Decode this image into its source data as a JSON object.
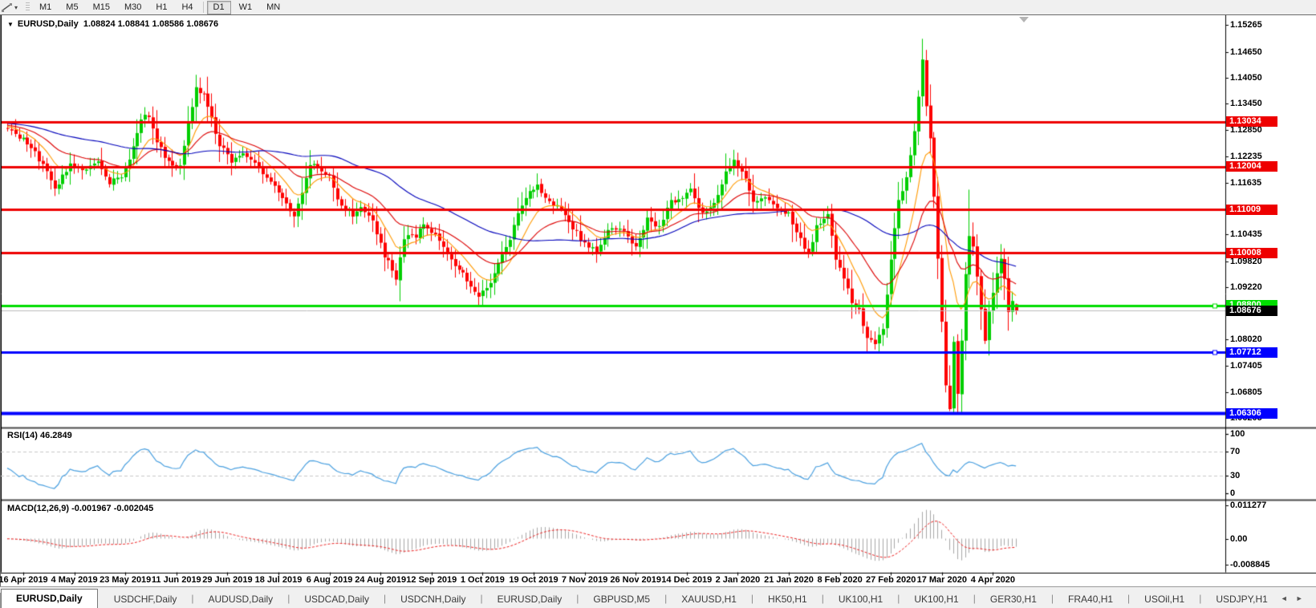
{
  "toolbar": {
    "tool_icon": "trendline-tool-icon",
    "dropdown_glyph": "▾",
    "timeframes": [
      {
        "label": "M1",
        "active": false
      },
      {
        "label": "M5",
        "active": false
      },
      {
        "label": "M15",
        "active": false
      },
      {
        "label": "M30",
        "active": false
      },
      {
        "label": "H1",
        "active": false
      },
      {
        "label": "H4",
        "active": false
      },
      {
        "label": "D1",
        "active": true
      },
      {
        "label": "W1",
        "active": false
      },
      {
        "label": "MN",
        "active": false
      }
    ]
  },
  "title": {
    "collapse_glyph": "▼",
    "symbol": "EURUSD,Daily",
    "values": "1.08824 1.08841 1.08586 1.08676"
  },
  "chart_data": {
    "type": "candlestick",
    "symbol": "EURUSD",
    "timeframe": "Daily",
    "bars": 258,
    "last_candle": {
      "open": 1.08824,
      "high": 1.08841,
      "low": 1.08586,
      "close": 1.08676
    },
    "x_axis": {
      "labels": [
        "16 Apr 2019",
        "4 May 2019",
        "23 May 2019",
        "11 Jun 2019",
        "29 Jun 2019",
        "18 Jul 2019",
        "6 Aug 2019",
        "24 Aug 2019",
        "12 Sep 2019",
        "1 Oct 2019",
        "19 Oct 2019",
        "7 Nov 2019",
        "26 Nov 2019",
        "14 Dec 2019",
        "2 Jan 2020",
        "21 Jan 2020",
        "8 Feb 2020",
        "27 Feb 2020",
        "17 Mar 2020",
        "4 Apr 2020"
      ]
    },
    "y_axis": {
      "range": [
        1.06,
        1.1542
      ],
      "visible_ticks": [
        "1.15265",
        "1.14650",
        "1.14050",
        "1.13450",
        "1.12850",
        "1.12235",
        "1.11635",
        "1.10435",
        "1.09820",
        "1.09220",
        "1.08020",
        "1.07405",
        "1.06805",
        "1.06205"
      ]
    },
    "hlines": [
      {
        "price": 1.13034,
        "label": "1.13034",
        "color": "#ee0000",
        "width": 3,
        "handle": false
      },
      {
        "price": 1.12004,
        "label": "1.12004",
        "color": "#ee0000",
        "width": 3,
        "handle": false
      },
      {
        "price": 1.11009,
        "label": "1.11009",
        "color": "#ee0000",
        "width": 3,
        "handle": false
      },
      {
        "price": 1.10008,
        "label": "1.10008",
        "color": "#ee0000",
        "width": 3,
        "handle": false
      },
      {
        "price": 1.088,
        "label": "1.08800",
        "color": "#00dd00",
        "width": 3,
        "handle": true
      },
      {
        "price": 1.07712,
        "label": "1.07712",
        "color": "#0000ff",
        "width": 3,
        "handle": true
      },
      {
        "price": 1.06306,
        "label": "1.06306",
        "color": "#0000ff",
        "width": 4,
        "handle": false
      }
    ],
    "current_price": {
      "value": 1.08676,
      "label": "1.08676",
      "line_color": "#bcbcbc",
      "label_bg": "#000000"
    },
    "price_anchors": [
      [
        -60,
        1.129
      ],
      [
        -45,
        1.133
      ],
      [
        -30,
        1.127
      ],
      [
        -15,
        1.131
      ],
      [
        0,
        1.1285
      ],
      [
        5,
        1.1255
      ],
      [
        9,
        1.1205
      ],
      [
        12,
        1.115
      ],
      [
        16,
        1.1205
      ],
      [
        20,
        1.1195
      ],
      [
        23,
        1.121
      ],
      [
        26,
        1.1165
      ],
      [
        29,
        1.1175
      ],
      [
        31,
        1.1215
      ],
      [
        34,
        1.131
      ],
      [
        36,
        1.132
      ],
      [
        38,
        1.1255
      ],
      [
        41,
        1.121
      ],
      [
        44,
        1.12
      ],
      [
        46,
        1.1305
      ],
      [
        48,
        1.138
      ],
      [
        50,
        1.137
      ],
      [
        52,
        1.131
      ],
      [
        54,
        1.125
      ],
      [
        57,
        1.1215
      ],
      [
        60,
        1.123
      ],
      [
        62,
        1.1215
      ],
      [
        65,
        1.1185
      ],
      [
        68,
        1.115
      ],
      [
        70,
        1.1125
      ],
      [
        73,
        1.108
      ],
      [
        75,
        1.1145
      ],
      [
        77,
        1.1205
      ],
      [
        80,
        1.1195
      ],
      [
        82,
        1.1175
      ],
      [
        85,
        1.1105
      ],
      [
        88,
        1.109
      ],
      [
        90,
        1.111
      ],
      [
        93,
        1.1075
      ],
      [
        96,
        1.0995
      ],
      [
        99,
        1.0945
      ],
      [
        101,
        1.1035
      ],
      [
        104,
        1.104
      ],
      [
        106,
        1.1065
      ],
      [
        109,
        1.104
      ],
      [
        112,
        1.0995
      ],
      [
        115,
        1.0965
      ],
      [
        117,
        1.0935
      ],
      [
        120,
        1.0895
      ],
      [
        123,
        1.0935
      ],
      [
        125,
        1.098
      ],
      [
        128,
        1.1035
      ],
      [
        130,
        1.1095
      ],
      [
        133,
        1.114
      ],
      [
        135,
        1.1155
      ],
      [
        138,
        1.112
      ],
      [
        141,
        1.1105
      ],
      [
        144,
        1.106
      ],
      [
        147,
        1.102
      ],
      [
        150,
        1.1005
      ],
      [
        153,
        1.1055
      ],
      [
        156,
        1.106
      ],
      [
        158,
        1.1035
      ],
      [
        160,
        1.1015
      ],
      [
        163,
        1.108
      ],
      [
        166,
        1.106
      ],
      [
        169,
        1.112
      ],
      [
        172,
        1.113
      ],
      [
        174,
        1.1145
      ],
      [
        177,
        1.109
      ],
      [
        180,
        1.1115
      ],
      [
        183,
        1.119
      ],
      [
        185,
        1.121
      ],
      [
        187,
        1.119
      ],
      [
        190,
        1.112
      ],
      [
        193,
        1.1135
      ],
      [
        196,
        1.111
      ],
      [
        199,
        1.109
      ],
      [
        202,
        1.103
      ],
      [
        204,
        1.1
      ],
      [
        206,
        1.106
      ],
      [
        209,
        1.109
      ],
      [
        211,
        1.099
      ],
      [
        213,
        1.0945
      ],
      [
        215,
        1.089
      ],
      [
        217,
        1.087
      ],
      [
        219,
        1.08
      ],
      [
        221,
        1.079
      ],
      [
        223,
        1.083
      ],
      [
        225,
        1.099
      ],
      [
        227,
        1.112
      ],
      [
        229,
        1.117
      ],
      [
        231,
        1.128
      ],
      [
        233,
        1.145
      ],
      [
        234,
        1.1335
      ],
      [
        235,
        1.127
      ],
      [
        236,
        1.113
      ],
      [
        237,
        1.099
      ],
      [
        238,
        1.084
      ],
      [
        239,
        1.07
      ],
      [
        240,
        1.0645
      ],
      [
        241,
        1.079
      ],
      [
        242,
        1.068
      ],
      [
        243,
        1.08
      ],
      [
        244,
        1.095
      ],
      [
        245,
        1.104
      ],
      [
        246,
        1.102
      ],
      [
        247,
        1.095
      ],
      [
        248,
        1.087
      ],
      [
        249,
        1.08
      ],
      [
        250,
        1.086
      ],
      [
        251,
        1.091
      ],
      [
        252,
        1.095
      ],
      [
        253,
        1.0985
      ],
      [
        254,
        1.094
      ],
      [
        255,
        1.087
      ],
      [
        256,
        1.089
      ],
      [
        257,
        1.08676
      ]
    ],
    "overrides": {
      "48": {
        "high": 1.1412
      },
      "99": {
        "low": 1.0926
      },
      "120": {
        "low": 1.0879
      },
      "185": {
        "high": 1.1239
      },
      "221": {
        "low": 1.0778
      },
      "233": {
        "high": 1.1495
      },
      "240": {
        "low": 1.0636
      },
      "245": {
        "high": 1.1147
      },
      "249": {
        "low": 1.0791
      },
      "257": {
        "open": 1.08824,
        "high": 1.08841,
        "low": 1.08586,
        "close": 1.08676
      }
    },
    "moving_averages": [
      {
        "period": 10,
        "method": "ema",
        "color": "#ff9900"
      },
      {
        "period": 24,
        "method": "ema",
        "color": "#dd0000"
      },
      {
        "period": 52,
        "method": "sma",
        "color": "#0000bb"
      }
    ],
    "indicators": {
      "rsi": {
        "label": "RSI(14)",
        "value": "46.2849",
        "period": 14,
        "levels": [
          70,
          30
        ],
        "axis_labels": [
          "100",
          "70",
          "30",
          "0"
        ],
        "color": "#4aa0e0",
        "level_color": "#c8c8c8"
      },
      "macd": {
        "label": "MACD(12,26,9)",
        "values": "-0.001967 -0.002045",
        "fast": 12,
        "slow": 26,
        "signal": 9,
        "axis_labels": [
          "0.011277",
          "0.00",
          "-0.008845"
        ],
        "axis_values": [
          0.011277,
          0.0,
          -0.008845
        ],
        "hist_color": "#a8a8a8",
        "signal_color": "#ee2222"
      }
    },
    "shift_marker": "chart-shift-triangle"
  },
  "colors": {
    "bull": "#00ce00",
    "bear": "#fe0000",
    "background": "#ffffff",
    "foreground": "#000000"
  },
  "tabs": {
    "items": [
      {
        "label": "EURUSD,Daily",
        "active": true
      },
      {
        "label": "USDCHF,Daily",
        "active": false
      },
      {
        "label": "AUDUSD,Daily",
        "active": false
      },
      {
        "label": "USDCAD,Daily",
        "active": false
      },
      {
        "label": "USDCNH,Daily",
        "active": false
      },
      {
        "label": "EURUSD,Daily",
        "active": false
      },
      {
        "label": "GBPUSD,M5",
        "active": false
      },
      {
        "label": "XAUUSD,H1",
        "active": false
      },
      {
        "label": "HK50,H1",
        "active": false
      },
      {
        "label": "UK100,H1",
        "active": false
      },
      {
        "label": "UK100,H1",
        "active": false
      },
      {
        "label": "GER30,H1",
        "active": false
      },
      {
        "label": "FRA40,H1",
        "active": false
      },
      {
        "label": "USOil,H1",
        "active": false
      },
      {
        "label": "USDJPY,H1",
        "active": false
      }
    ],
    "scroll_left": "◄",
    "scroll_right": "►"
  }
}
